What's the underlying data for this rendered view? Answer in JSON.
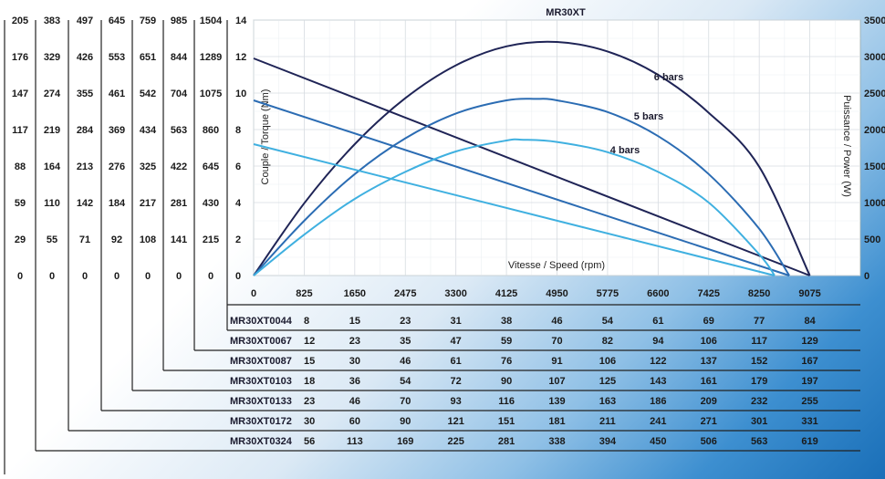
{
  "chart_data": {
    "type": "line",
    "title": "MR30XT",
    "xlabel": "Vitesse / Speed (rpm)",
    "ylabel_left": "Couple / Torque (Nm)",
    "ylabel_right": "Puissance / Power (W)",
    "x_ticks": [
      "0",
      "825",
      "1650",
      "2475",
      "3300",
      "4125",
      "4950",
      "5775",
      "6600",
      "7425",
      "8250",
      "9075"
    ],
    "xlim": [
      0,
      9900
    ],
    "y_left_ticks": [
      "0",
      "2",
      "4",
      "6",
      "8",
      "10",
      "12",
      "14"
    ],
    "ylim_left": [
      0,
      14
    ],
    "y_right_ticks": [
      "0",
      "500",
      "1000",
      "1500",
      "2000",
      "2500",
      "3000",
      "3500"
    ],
    "ylim_right": [
      0,
      3500
    ],
    "grid": true,
    "torque_column_headers": [
      "205",
      "383",
      "497",
      "645",
      "759",
      "985",
      "1504"
    ],
    "torque_columns": [
      [
        "205",
        "176",
        "147",
        "117",
        "88",
        "59",
        "29",
        "0"
      ],
      [
        "383",
        "329",
        "274",
        "219",
        "164",
        "110",
        "55",
        "0"
      ],
      [
        "497",
        "426",
        "355",
        "284",
        "213",
        "142",
        "71",
        "0"
      ],
      [
        "645",
        "553",
        "461",
        "369",
        "276",
        "184",
        "92",
        "0"
      ],
      [
        "759",
        "651",
        "542",
        "434",
        "325",
        "217",
        "108",
        "0"
      ],
      [
        "985",
        "844",
        "704",
        "563",
        "422",
        "281",
        "141",
        "0"
      ],
      [
        "1504",
        "1289",
        "1075",
        "860",
        "645",
        "430",
        "215",
        "0"
      ]
    ],
    "speed_rows": [
      {
        "name": "MR30XT0044",
        "values": [
          "8",
          "15",
          "23",
          "31",
          "38",
          "46",
          "54",
          "61",
          "69",
          "77",
          "84"
        ]
      },
      {
        "name": "MR30XT0067",
        "values": [
          "12",
          "23",
          "35",
          "47",
          "59",
          "70",
          "82",
          "94",
          "106",
          "117",
          "129"
        ]
      },
      {
        "name": "MR30XT0087",
        "values": [
          "15",
          "30",
          "46",
          "61",
          "76",
          "91",
          "106",
          "122",
          "137",
          "152",
          "167"
        ]
      },
      {
        "name": "MR30XT0103",
        "values": [
          "18",
          "36",
          "54",
          "72",
          "90",
          "107",
          "125",
          "143",
          "161",
          "179",
          "197"
        ]
      },
      {
        "name": "MR30XT0133",
        "values": [
          "23",
          "46",
          "70",
          "93",
          "116",
          "139",
          "163",
          "186",
          "209",
          "232",
          "255"
        ]
      },
      {
        "name": "MR30XT0172",
        "values": [
          "30",
          "60",
          "90",
          "121",
          "151",
          "181",
          "211",
          "241",
          "271",
          "301",
          "331"
        ]
      },
      {
        "name": "MR30XT0324",
        "values": [
          "56",
          "113",
          "169",
          "225",
          "281",
          "338",
          "394",
          "450",
          "506",
          "563",
          "619"
        ]
      }
    ],
    "series": [
      {
        "name": "6 bars",
        "color": "#1f2456",
        "torque": {
          "x": [
            0,
            9075
          ],
          "y": [
            11.9,
            0
          ]
        },
        "power": {
          "x": [
            0,
            825,
            1650,
            2475,
            3300,
            4125,
            4950,
            5775,
            6600,
            7425,
            8250,
            9075
          ],
          "y": [
            0,
            990,
            1800,
            2430,
            2880,
            3140,
            3200,
            3070,
            2750,
            2230,
            1490,
            0
          ]
        }
      },
      {
        "name": "5 bars",
        "color": "#2b6cb3",
        "torque": {
          "x": [
            0,
            8740
          ],
          "y": [
            9.6,
            0
          ]
        },
        "power": {
          "x": [
            0,
            825,
            1650,
            2475,
            3300,
            4125,
            4600,
            4950,
            5775,
            6600,
            7425,
            8250,
            8740
          ],
          "y": [
            0,
            750,
            1390,
            1880,
            2220,
            2400,
            2420,
            2400,
            2240,
            1910,
            1390,
            640,
            0
          ]
        }
      },
      {
        "name": "4 bars",
        "color": "#3fb0e0",
        "torque": {
          "x": [
            0,
            8500
          ],
          "y": [
            7.2,
            0
          ]
        },
        "power": {
          "x": [
            0,
            825,
            1650,
            2475,
            3300,
            4125,
            4400,
            4950,
            5775,
            6600,
            7425,
            8250,
            8500
          ],
          "y": [
            0,
            560,
            1050,
            1420,
            1700,
            1850,
            1860,
            1830,
            1690,
            1420,
            1000,
            290,
            0
          ]
        }
      }
    ]
  }
}
